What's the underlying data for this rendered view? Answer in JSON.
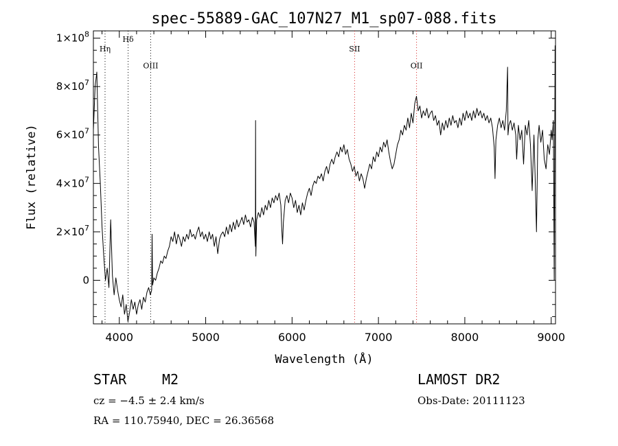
{
  "chart_data": {
    "type": "line",
    "title": "spec-55889-GAC_107N27_M1_sp07-088.fits",
    "xlabel": "Wavelength (Å)",
    "ylabel": "Flux (relative)",
    "xlim": [
      3700,
      9050
    ],
    "ylim": [
      -18000000,
      103000000
    ],
    "xticks": [
      {
        "v": 4000,
        "label": "4000"
      },
      {
        "v": 5000,
        "label": "5000"
      },
      {
        "v": 6000,
        "label": "6000"
      },
      {
        "v": 7000,
        "label": "7000"
      },
      {
        "v": 8000,
        "label": "8000"
      },
      {
        "v": 9000,
        "label": "9000"
      }
    ],
    "yticks": [
      {
        "v": 0,
        "base": "0",
        "exp": ""
      },
      {
        "v": 20000000,
        "base": "2×10",
        "exp": "7"
      },
      {
        "v": 40000000,
        "base": "4×10",
        "exp": "7"
      },
      {
        "v": 60000000,
        "base": "6×10",
        "exp": "7"
      },
      {
        "v": 80000000,
        "base": "8×10",
        "exp": "7"
      },
      {
        "v": 100000000,
        "base": "1×10",
        "exp": "8"
      }
    ],
    "grid": false,
    "series": [
      {
        "points": [
          [
            3700,
            62000000
          ],
          [
            3720,
            80000000
          ],
          [
            3740,
            86000000
          ],
          [
            3760,
            55000000
          ],
          [
            3780,
            40000000
          ],
          [
            3800,
            22000000
          ],
          [
            3820,
            10000000
          ],
          [
            3840,
            0
          ],
          [
            3860,
            5000000
          ],
          [
            3880,
            -3000000
          ],
          [
            3900,
            25000000
          ],
          [
            3920,
            2000000
          ],
          [
            3940,
            -6000000
          ],
          [
            3960,
            1000000
          ],
          [
            3980,
            -4000000
          ],
          [
            4000,
            -8000000
          ],
          [
            4020,
            -11000000
          ],
          [
            4040,
            -6000000
          ],
          [
            4060,
            -14000000
          ],
          [
            4080,
            -10000000
          ],
          [
            4100,
            -17000000
          ],
          [
            4120,
            -13000000
          ],
          [
            4140,
            -8000000
          ],
          [
            4160,
            -12000000
          ],
          [
            4180,
            -9000000
          ],
          [
            4200,
            -14000000
          ],
          [
            4220,
            -10000000
          ],
          [
            4240,
            -8000000
          ],
          [
            4260,
            -12000000
          ],
          [
            4280,
            -7000000
          ],
          [
            4300,
            -9000000
          ],
          [
            4320,
            -5000000
          ],
          [
            4340,
            -3000000
          ],
          [
            4360,
            -6000000
          ],
          [
            4375,
            -4000000
          ],
          [
            4380,
            19000000
          ],
          [
            4385,
            -2000000
          ],
          [
            4400,
            1000000
          ],
          [
            4420,
            0
          ],
          [
            4440,
            3000000
          ],
          [
            4460,
            5000000
          ],
          [
            4480,
            8000000
          ],
          [
            4500,
            7000000
          ],
          [
            4520,
            10000000
          ],
          [
            4540,
            9000000
          ],
          [
            4560,
            12000000
          ],
          [
            4580,
            14000000
          ],
          [
            4600,
            18000000
          ],
          [
            4620,
            16000000
          ],
          [
            4640,
            20000000
          ],
          [
            4660,
            15000000
          ],
          [
            4680,
            19000000
          ],
          [
            4700,
            17000000
          ],
          [
            4720,
            14000000
          ],
          [
            4740,
            18000000
          ],
          [
            4760,
            16000000
          ],
          [
            4780,
            19000000
          ],
          [
            4800,
            17000000
          ],
          [
            4820,
            21000000
          ],
          [
            4840,
            18000000
          ],
          [
            4860,
            19000000
          ],
          [
            4880,
            17000000
          ],
          [
            4900,
            20000000
          ],
          [
            4920,
            22000000
          ],
          [
            4940,
            18000000
          ],
          [
            4960,
            20000000
          ],
          [
            4980,
            17000000
          ],
          [
            5000,
            19000000
          ],
          [
            5020,
            16000000
          ],
          [
            5040,
            20000000
          ],
          [
            5060,
            17000000
          ],
          [
            5080,
            19000000
          ],
          [
            5100,
            14000000
          ],
          [
            5120,
            18000000
          ],
          [
            5140,
            11000000
          ],
          [
            5160,
            17000000
          ],
          [
            5180,
            19000000
          ],
          [
            5200,
            20000000
          ],
          [
            5220,
            18000000
          ],
          [
            5240,
            22000000
          ],
          [
            5260,
            19000000
          ],
          [
            5280,
            23000000
          ],
          [
            5300,
            20000000
          ],
          [
            5320,
            24000000
          ],
          [
            5340,
            21000000
          ],
          [
            5360,
            25000000
          ],
          [
            5380,
            22000000
          ],
          [
            5400,
            24000000
          ],
          [
            5420,
            26000000
          ],
          [
            5440,
            23000000
          ],
          [
            5460,
            27000000
          ],
          [
            5480,
            24000000
          ],
          [
            5500,
            25000000
          ],
          [
            5520,
            22000000
          ],
          [
            5540,
            26000000
          ],
          [
            5560,
            24000000
          ],
          [
            5575,
            14000000
          ],
          [
            5578,
            66000000
          ],
          [
            5581,
            10000000
          ],
          [
            5590,
            25000000
          ],
          [
            5610,
            28000000
          ],
          [
            5630,
            26000000
          ],
          [
            5650,
            30000000
          ],
          [
            5670,
            27000000
          ],
          [
            5690,
            31000000
          ],
          [
            5710,
            29000000
          ],
          [
            5730,
            33000000
          ],
          [
            5750,
            30000000
          ],
          [
            5770,
            34000000
          ],
          [
            5790,
            32000000
          ],
          [
            5810,
            35000000
          ],
          [
            5830,
            33000000
          ],
          [
            5850,
            36000000
          ],
          [
            5870,
            31000000
          ],
          [
            5880,
            22000000
          ],
          [
            5890,
            15000000
          ],
          [
            5900,
            24000000
          ],
          [
            5920,
            33000000
          ],
          [
            5940,
            35000000
          ],
          [
            5960,
            32000000
          ],
          [
            5980,
            36000000
          ],
          [
            6000,
            34000000
          ],
          [
            6020,
            30000000
          ],
          [
            6040,
            33000000
          ],
          [
            6060,
            28000000
          ],
          [
            6080,
            31000000
          ],
          [
            6100,
            27000000
          ],
          [
            6120,
            32000000
          ],
          [
            6140,
            29000000
          ],
          [
            6160,
            33000000
          ],
          [
            6180,
            36000000
          ],
          [
            6200,
            38000000
          ],
          [
            6220,
            35000000
          ],
          [
            6240,
            39000000
          ],
          [
            6260,
            41000000
          ],
          [
            6280,
            40000000
          ],
          [
            6300,
            43000000
          ],
          [
            6320,
            42000000
          ],
          [
            6340,
            44000000
          ],
          [
            6360,
            41000000
          ],
          [
            6380,
            45000000
          ],
          [
            6400,
            47000000
          ],
          [
            6420,
            44000000
          ],
          [
            6440,
            48000000
          ],
          [
            6460,
            50000000
          ],
          [
            6480,
            48000000
          ],
          [
            6500,
            51000000
          ],
          [
            6520,
            53000000
          ],
          [
            6540,
            51000000
          ],
          [
            6560,
            55000000
          ],
          [
            6580,
            53000000
          ],
          [
            6600,
            56000000
          ],
          [
            6620,
            52000000
          ],
          [
            6640,
            54000000
          ],
          [
            6660,
            50000000
          ],
          [
            6680,
            48000000
          ],
          [
            6700,
            45000000
          ],
          [
            6720,
            47000000
          ],
          [
            6740,
            43000000
          ],
          [
            6760,
            45000000
          ],
          [
            6780,
            41000000
          ],
          [
            6800,
            44000000
          ],
          [
            6820,
            42000000
          ],
          [
            6840,
            38000000
          ],
          [
            6860,
            42000000
          ],
          [
            6880,
            45000000
          ],
          [
            6900,
            48000000
          ],
          [
            6920,
            46000000
          ],
          [
            6940,
            51000000
          ],
          [
            6960,
            49000000
          ],
          [
            6980,
            53000000
          ],
          [
            7000,
            51000000
          ],
          [
            7020,
            55000000
          ],
          [
            7040,
            53000000
          ],
          [
            7060,
            57000000
          ],
          [
            7080,
            55000000
          ],
          [
            7100,
            58000000
          ],
          [
            7120,
            53000000
          ],
          [
            7140,
            49000000
          ],
          [
            7160,
            46000000
          ],
          [
            7180,
            48000000
          ],
          [
            7200,
            52000000
          ],
          [
            7220,
            56000000
          ],
          [
            7240,
            58000000
          ],
          [
            7260,
            62000000
          ],
          [
            7280,
            60000000
          ],
          [
            7300,
            64000000
          ],
          [
            7320,
            62000000
          ],
          [
            7340,
            67000000
          ],
          [
            7360,
            63000000
          ],
          [
            7380,
            69000000
          ],
          [
            7400,
            65000000
          ],
          [
            7420,
            73000000
          ],
          [
            7440,
            76000000
          ],
          [
            7460,
            70000000
          ],
          [
            7480,
            72000000
          ],
          [
            7500,
            67000000
          ],
          [
            7520,
            70000000
          ],
          [
            7540,
            68000000
          ],
          [
            7560,
            71000000
          ],
          [
            7580,
            67000000
          ],
          [
            7600,
            69000000
          ],
          [
            7620,
            70000000
          ],
          [
            7640,
            66000000
          ],
          [
            7660,
            68000000
          ],
          [
            7680,
            64000000
          ],
          [
            7700,
            66000000
          ],
          [
            7720,
            60000000
          ],
          [
            7740,
            65000000
          ],
          [
            7760,
            62000000
          ],
          [
            7780,
            66000000
          ],
          [
            7800,
            63000000
          ],
          [
            7820,
            67000000
          ],
          [
            7840,
            64000000
          ],
          [
            7860,
            68000000
          ],
          [
            7880,
            65000000
          ],
          [
            7900,
            66000000
          ],
          [
            7920,
            63000000
          ],
          [
            7940,
            67000000
          ],
          [
            7960,
            64000000
          ],
          [
            7980,
            69000000
          ],
          [
            8000,
            66000000
          ],
          [
            8020,
            70000000
          ],
          [
            8040,
            67000000
          ],
          [
            8060,
            69000000
          ],
          [
            8080,
            66000000
          ],
          [
            8100,
            70000000
          ],
          [
            8120,
            67000000
          ],
          [
            8140,
            71000000
          ],
          [
            8160,
            68000000
          ],
          [
            8180,
            70000000
          ],
          [
            8200,
            67000000
          ],
          [
            8220,
            69000000
          ],
          [
            8240,
            66000000
          ],
          [
            8260,
            68000000
          ],
          [
            8280,
            65000000
          ],
          [
            8300,
            67000000
          ],
          [
            8320,
            63000000
          ],
          [
            8340,
            55000000
          ],
          [
            8350,
            42000000
          ],
          [
            8360,
            58000000
          ],
          [
            8380,
            64000000
          ],
          [
            8400,
            67000000
          ],
          [
            8420,
            63000000
          ],
          [
            8440,
            66000000
          ],
          [
            8460,
            62000000
          ],
          [
            8480,
            70000000
          ],
          [
            8495,
            88000000
          ],
          [
            8500,
            60000000
          ],
          [
            8510,
            64000000
          ],
          [
            8530,
            66000000
          ],
          [
            8550,
            62000000
          ],
          [
            8570,
            65000000
          ],
          [
            8590,
            60000000
          ],
          [
            8600,
            50000000
          ],
          [
            8620,
            64000000
          ],
          [
            8640,
            58000000
          ],
          [
            8660,
            62000000
          ],
          [
            8680,
            48000000
          ],
          [
            8700,
            64000000
          ],
          [
            8720,
            60000000
          ],
          [
            8740,
            66000000
          ],
          [
            8760,
            56000000
          ],
          [
            8780,
            37000000
          ],
          [
            8800,
            60000000
          ],
          [
            8815,
            42000000
          ],
          [
            8830,
            20000000
          ],
          [
            8845,
            58000000
          ],
          [
            8860,
            64000000
          ],
          [
            8880,
            57000000
          ],
          [
            8900,
            62000000
          ],
          [
            8920,
            50000000
          ],
          [
            8940,
            46000000
          ],
          [
            8960,
            56000000
          ],
          [
            8980,
            52000000
          ],
          [
            9000,
            62000000
          ],
          [
            9010,
            58000000
          ],
          [
            9025,
            66000000
          ],
          [
            9035,
            0
          ],
          [
            9045,
            97000000
          ]
        ]
      }
    ],
    "lines": [
      {
        "label": "Hη",
        "x": 3835,
        "color": "#000000",
        "label_y": 94500000
      },
      {
        "label": "Hδ",
        "x": 4102,
        "color": "#000000",
        "label_y": 98500000
      },
      {
        "label": "OIII",
        "x": 4363,
        "color": "#000000",
        "label_y": 87500000
      },
      {
        "label": "SII",
        "x": 6724,
        "color": "#d42020",
        "label_y": 94500000
      },
      {
        "label": "OII",
        "x": 7441,
        "color": "#d42020",
        "label_y": 87500000
      }
    ]
  },
  "info": {
    "object_class": "STAR",
    "subclass": "M2",
    "survey": "LAMOST DR2",
    "cz_text": "cz = −4.5 ± 2.4 km/s",
    "obs_date": "Obs-Date: 20111123",
    "radec": "RA = 110.75940, DEC =  26.36568"
  }
}
